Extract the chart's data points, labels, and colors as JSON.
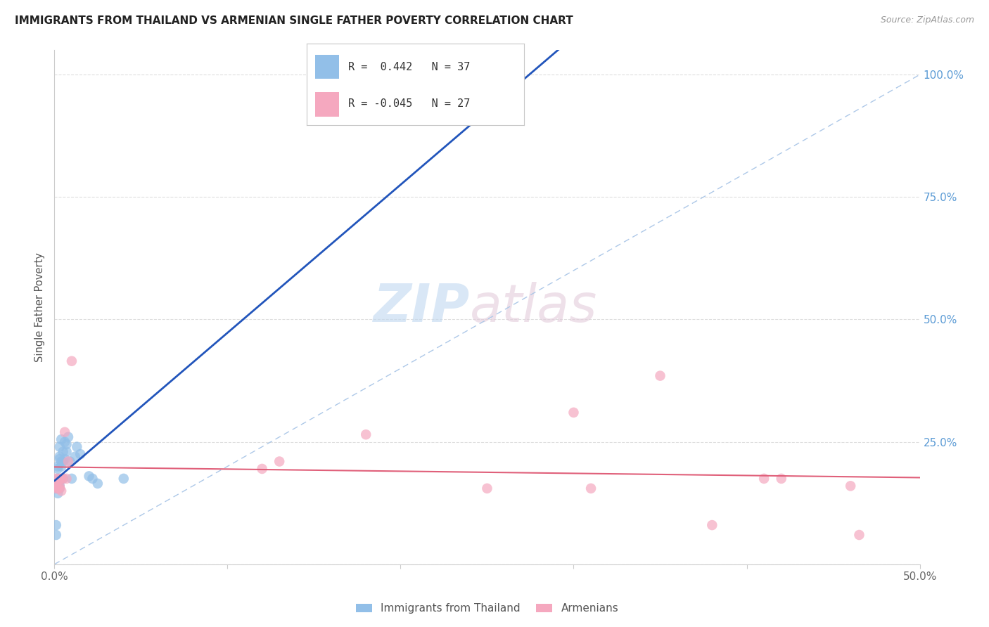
{
  "title": "IMMIGRANTS FROM THAILAND VS ARMENIAN SINGLE FATHER POVERTY CORRELATION CHART",
  "source": "Source: ZipAtlas.com",
  "ylabel": "Single Father Poverty",
  "xlim": [
    0.0,
    0.5
  ],
  "ylim": [
    0.0,
    1.05
  ],
  "thailand_color": "#92bfe8",
  "armenian_color": "#f5a8bf",
  "trend_thailand_color": "#2255bb",
  "trend_armenian_color": "#e0607a",
  "diagonal_color": "#adc8e8",
  "thailand_x": [
    0.001,
    0.001,
    0.001,
    0.001,
    0.002,
    0.002,
    0.002,
    0.002,
    0.002,
    0.002,
    0.003,
    0.003,
    0.003,
    0.003,
    0.003,
    0.003,
    0.004,
    0.004,
    0.004,
    0.005,
    0.005,
    0.005,
    0.006,
    0.006,
    0.007,
    0.007,
    0.008,
    0.009,
    0.01,
    0.012,
    0.013,
    0.015,
    0.02,
    0.022,
    0.025,
    0.04,
    0.26
  ],
  "thailand_y": [
    0.06,
    0.08,
    0.155,
    0.16,
    0.145,
    0.155,
    0.17,
    0.175,
    0.195,
    0.2,
    0.155,
    0.16,
    0.17,
    0.215,
    0.22,
    0.24,
    0.2,
    0.21,
    0.255,
    0.175,
    0.21,
    0.23,
    0.215,
    0.25,
    0.23,
    0.245,
    0.26,
    0.21,
    0.175,
    0.22,
    0.24,
    0.225,
    0.18,
    0.175,
    0.165,
    0.175,
    0.98
  ],
  "armenian_x": [
    0.001,
    0.001,
    0.001,
    0.002,
    0.002,
    0.003,
    0.003,
    0.003,
    0.004,
    0.004,
    0.005,
    0.006,
    0.007,
    0.008,
    0.01,
    0.12,
    0.13,
    0.18,
    0.25,
    0.3,
    0.31,
    0.35,
    0.38,
    0.41,
    0.42,
    0.46,
    0.465
  ],
  "armenian_y": [
    0.155,
    0.16,
    0.175,
    0.155,
    0.17,
    0.155,
    0.16,
    0.175,
    0.15,
    0.175,
    0.175,
    0.27,
    0.175,
    0.21,
    0.415,
    0.195,
    0.21,
    0.265,
    0.155,
    0.31,
    0.155,
    0.385,
    0.08,
    0.175,
    0.175,
    0.16,
    0.06
  ],
  "trend_thai_x0": 0.0,
  "trend_thai_x1": 0.5,
  "trend_arm_x0": 0.0,
  "trend_arm_x1": 0.5,
  "legend_r1_label": "R =  0.442   N = 37",
  "legend_r2_label": "R = -0.045   N = 27",
  "bottom_legend_labels": [
    "Immigrants from Thailand",
    "Armenians"
  ]
}
